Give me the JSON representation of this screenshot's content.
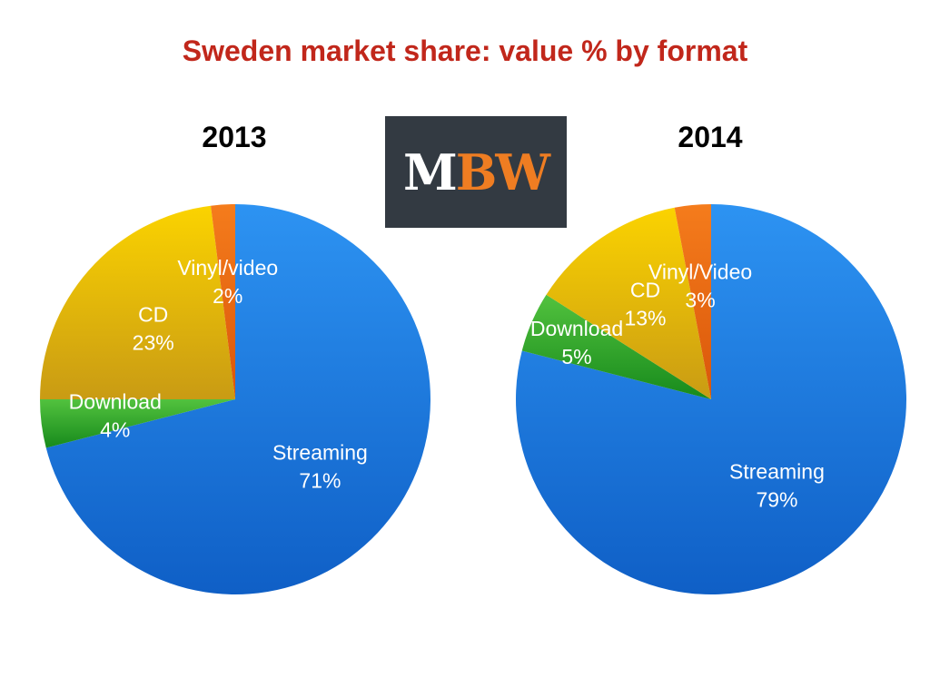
{
  "title": "Sweden market share: value % by format",
  "logo": {
    "text_left": "M",
    "text_right": "BW",
    "background": "#333a42",
    "accent": "#ef7d22"
  },
  "colors": {
    "Streaming": "#1e7ee6",
    "Download": "#2ea82e",
    "CD": "#e9b908",
    "Vinyl/video": "#ea6a12",
    "Vinyl/Video": "#ea6a12"
  },
  "chart_data": [
    {
      "type": "pie",
      "title": "2013",
      "categories": [
        "Streaming",
        "Download",
        "CD",
        "Vinyl/video"
      ],
      "values": [
        71,
        4,
        23,
        2
      ],
      "value_labels": [
        "71%",
        "4%",
        "23%",
        "2%"
      ],
      "unit": "%",
      "start": "12 o'clock",
      "direction": "clockwise",
      "legend": "none"
    },
    {
      "type": "pie",
      "title": "2014",
      "categories": [
        "Streaming",
        "Download",
        "CD",
        "Vinyl/Video"
      ],
      "values": [
        79,
        5,
        13,
        3
      ],
      "value_labels": [
        "79%",
        "5%",
        "13%",
        "3%"
      ],
      "unit": "%",
      "start": "12 o'clock",
      "direction": "clockwise",
      "legend": "none"
    }
  ]
}
